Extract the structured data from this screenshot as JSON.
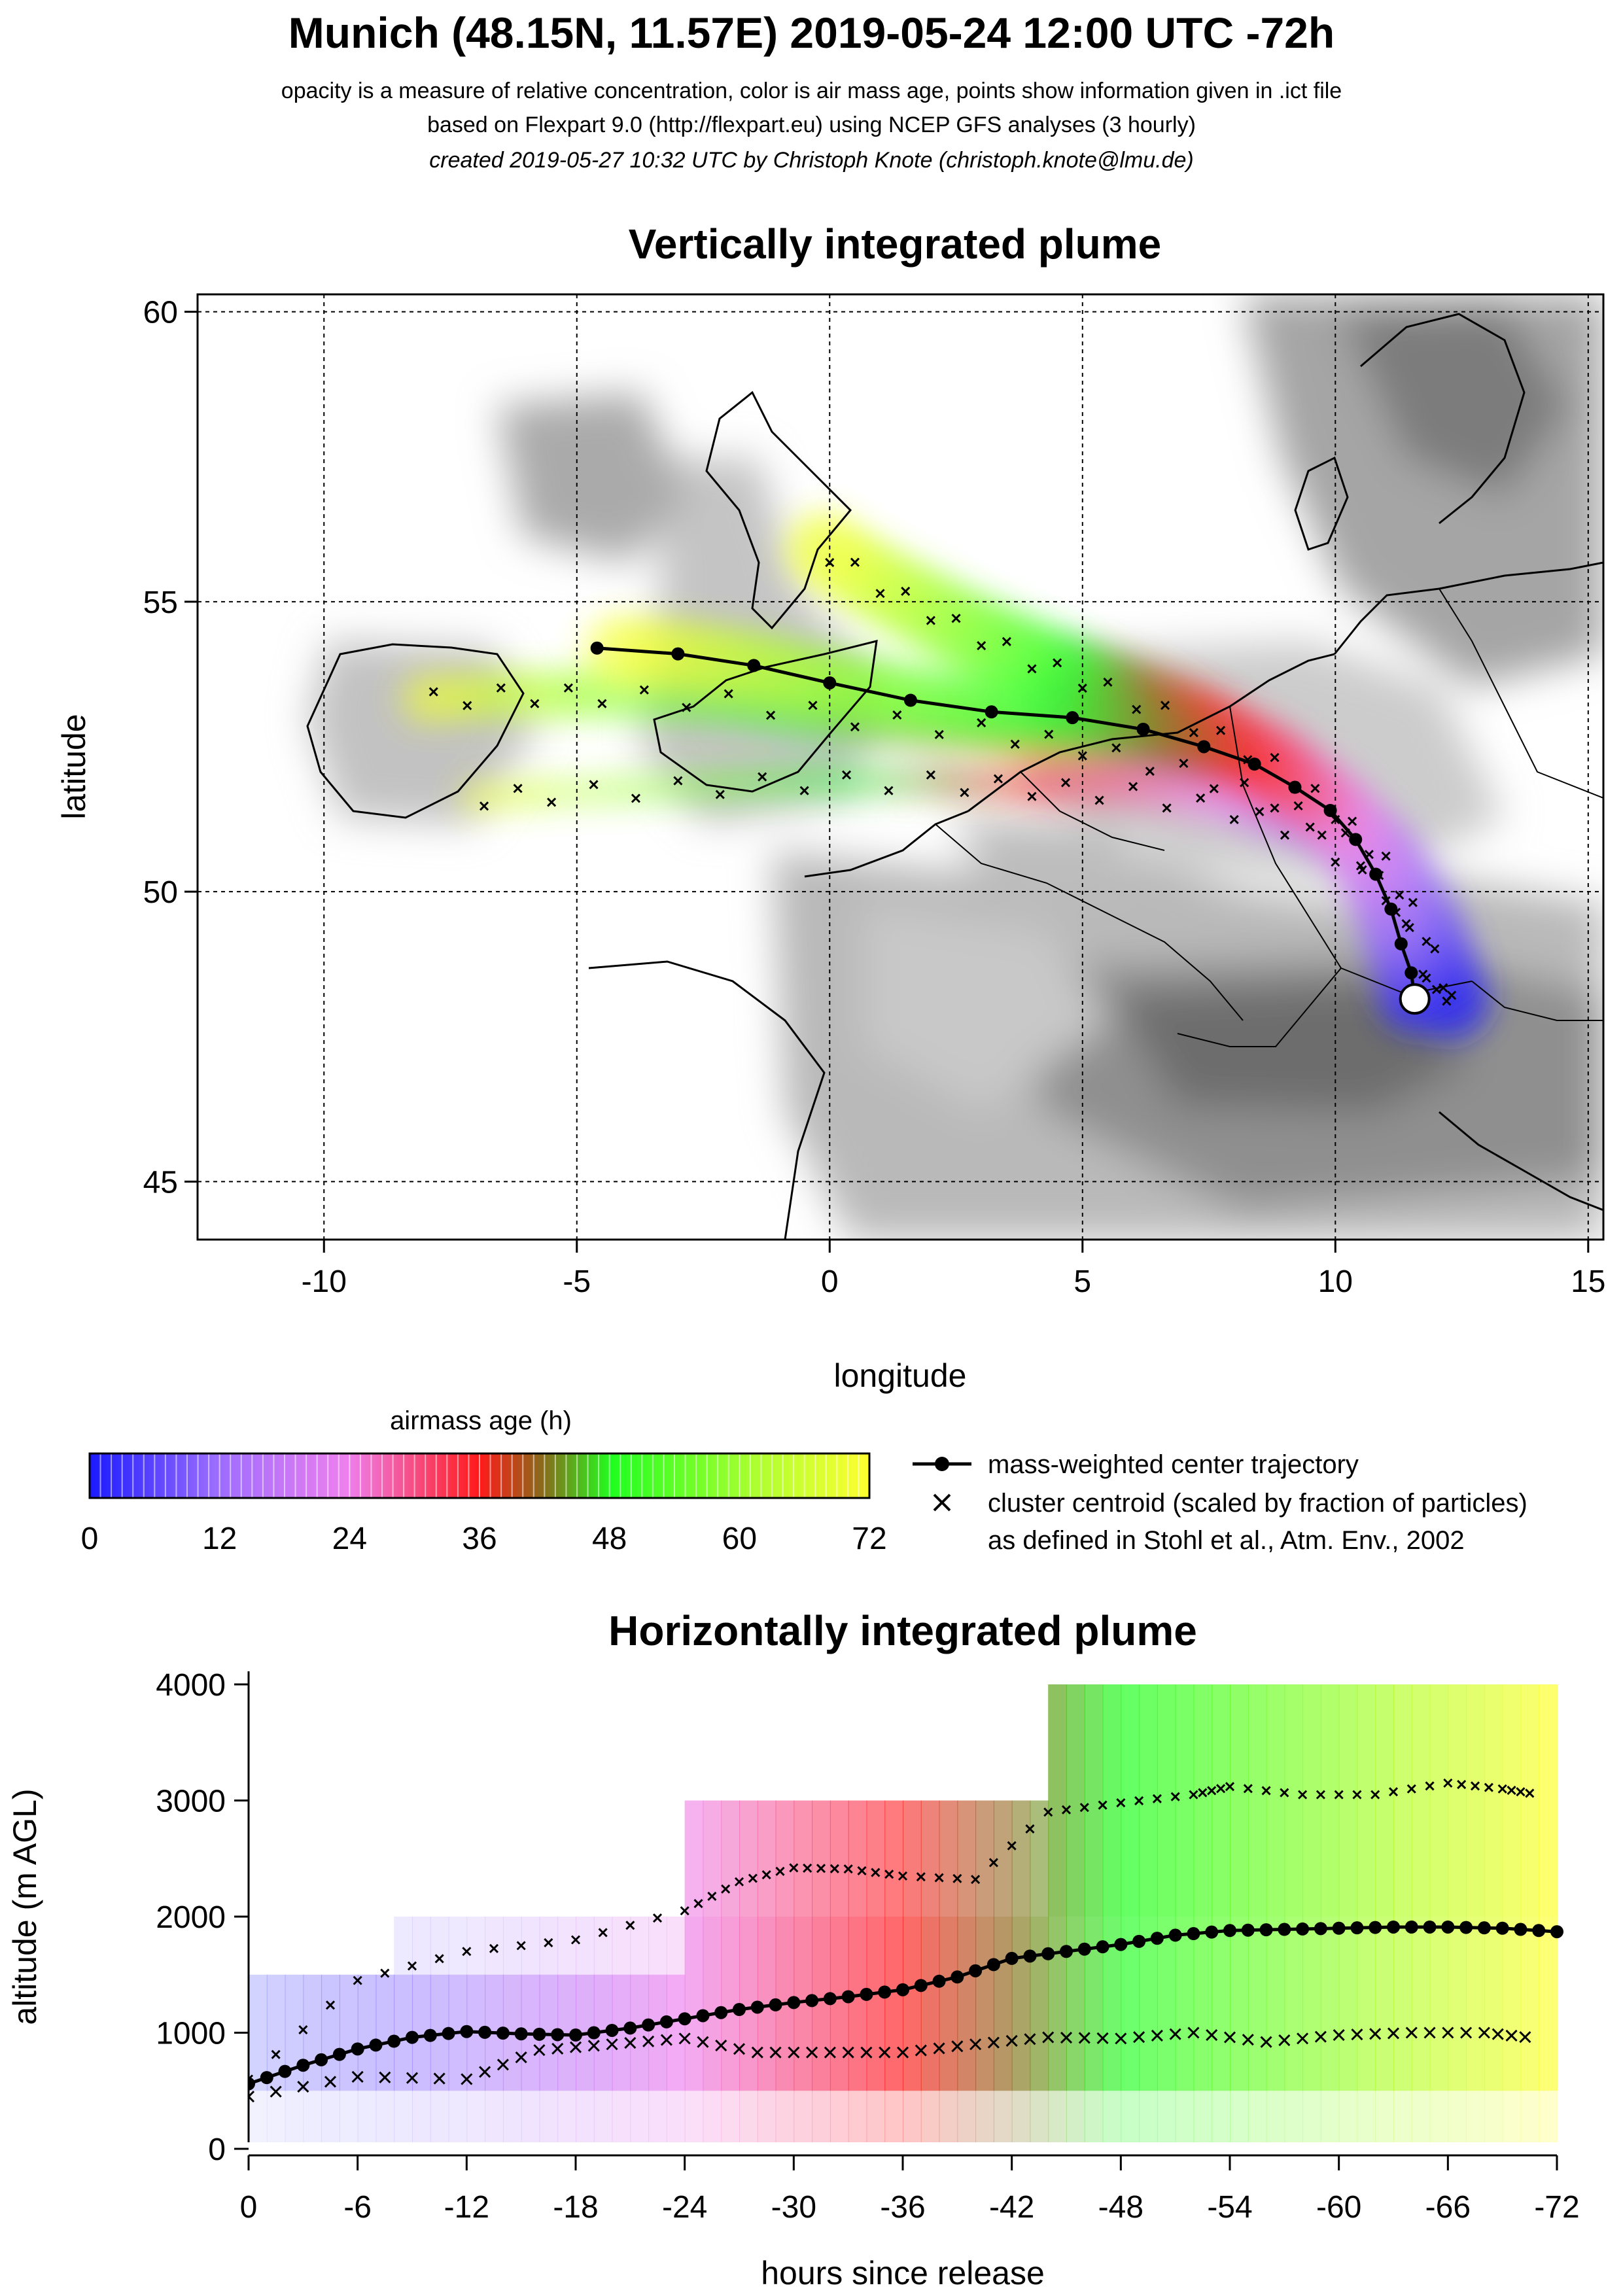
{
  "header": {
    "title": "Munich (48.15N, 11.57E) 2019-05-24 12:00 UTC -72h",
    "subtitle_1": "opacity is a measure of relative concentration, color is air mass age, points show information given in .ict file",
    "subtitle_2": "based on Flexpart 9.0 (http://flexpart.eu) using NCEP GFS analyses (3 hourly)",
    "subtitle_3": "created 2019-05-27 10:32 UTC by Christoph Knote (christoph.knote@lmu.de)"
  },
  "map_panel": {
    "title": "Vertically integrated plume",
    "xlabel": "longitude",
    "ylabel": "latitude"
  },
  "colorbar": {
    "title": "airmass age (h)",
    "ticks": [
      "0",
      "12",
      "24",
      "36",
      "48",
      "60",
      "72"
    ],
    "colors": {
      "blue": "#1a1aff",
      "magenta": "#ee80ee",
      "red": "#ff1a1a",
      "olive": "#7a7a1a",
      "green": "#20ff20",
      "yellow": "#ffff30"
    }
  },
  "legend": {
    "center_label": "mass-weighted center trajectory",
    "cluster_label": "cluster centroid (scaled by fraction of particles)",
    "cluster_label_2": "as defined in Stohl et al., Atm. Env., 2002"
  },
  "profile_panel": {
    "title": "Horizontally integrated plume",
    "xlabel": "hours since release",
    "ylabel": "altitude (m AGL)"
  },
  "chart_data": [
    {
      "type": "scatter",
      "title": "Vertically integrated plume",
      "xlabel": "longitude",
      "ylabel": "latitude",
      "xlim": [
        -12.5,
        15.3
      ],
      "ylim": [
        44.0,
        60.3
      ],
      "x_ticks": [
        "-10",
        "-5",
        "0",
        "5",
        "10",
        "15"
      ],
      "y_ticks": [
        "45",
        "50",
        "55",
        "60"
      ],
      "x_tick_values": [
        -10,
        -5,
        0,
        5,
        10,
        15
      ],
      "y_tick_values": [
        45,
        50,
        55,
        60
      ],
      "grid": true,
      "release_point": {
        "lon": 11.57,
        "lat": 48.15
      },
      "center_trajectory": {
        "lon": [
          11.57,
          11.5,
          11.3,
          11.1,
          10.8,
          10.4,
          9.9,
          9.2,
          8.4,
          7.4,
          6.2,
          4.8,
          3.2,
          1.6,
          0.0,
          -1.5,
          -3.0,
          -4.6
        ],
        "lat": [
          48.15,
          48.6,
          49.1,
          49.7,
          50.3,
          50.9,
          51.4,
          51.8,
          52.2,
          52.5,
          52.8,
          53.0,
          53.1,
          53.3,
          53.6,
          53.9,
          54.1,
          54.2
        ]
      },
      "plume_branches": [
        {
          "lon": [
            12.3,
            11.8,
            11.0,
            10.0,
            8.8,
            7.2,
            5.5,
            4.0,
            2.5,
            1.0,
            -0.5
          ],
          "lat": [
            48.1,
            49.3,
            50.5,
            51.4,
            52.2,
            52.9,
            53.5,
            54.0,
            54.6,
            55.3,
            56.1
          ],
          "age_end": 72
        },
        {
          "lon": [
            12.0,
            11.2,
            10.2,
            8.8,
            7.0,
            5.0,
            3.0,
            0.5,
            -2.0,
            -4.5,
            -6.5,
            -8.5
          ],
          "lat": [
            48.2,
            49.8,
            50.9,
            51.6,
            52.1,
            52.5,
            52.8,
            53.0,
            53.3,
            53.4,
            53.4,
            53.3
          ],
          "age_end": 72
        },
        {
          "lon": [
            12.2,
            11.0,
            9.5,
            8.0,
            6.0,
            4.0,
            2.0,
            -0.5,
            -3.0,
            -5.5,
            -7.5
          ],
          "lat": [
            48.0,
            50.0,
            51.0,
            51.4,
            51.7,
            51.8,
            51.9,
            51.9,
            51.8,
            51.7,
            51.6
          ],
          "age_end": 72
        }
      ]
    },
    {
      "type": "scatter",
      "title": "Horizontally integrated plume",
      "xlabel": "hours since release",
      "ylabel": "altitude (m AGL)",
      "xlim": [
        0,
        -72
      ],
      "ylim": [
        0,
        4000
      ],
      "x_ticks": [
        "0",
        "-6",
        "-12",
        "-18",
        "-24",
        "-30",
        "-36",
        "-42",
        "-48",
        "-54",
        "-60",
        "-66",
        "-72"
      ],
      "y_ticks": [
        "0",
        "1000",
        "2000",
        "3000",
        "4000"
      ],
      "center_trajectory": {
        "hours": [
          0,
          -3,
          -6,
          -9,
          -12,
          -15,
          -18,
          -21,
          -24,
          -27,
          -30,
          -33,
          -36,
          -39,
          -42,
          -45,
          -48,
          -51,
          -54,
          -57,
          -60,
          -63,
          -66,
          -69,
          -72
        ],
        "altitude": [
          560,
          720,
          860,
          960,
          1010,
          990,
          980,
          1040,
          1120,
          1200,
          1260,
          1310,
          1370,
          1480,
          1640,
          1700,
          1760,
          1840,
          1880,
          1890,
          1900,
          1910,
          1910,
          1900,
          1870
        ]
      },
      "cluster_upper": {
        "hours": [
          0,
          -6,
          -12,
          -18,
          -24,
          -27,
          -30,
          -33,
          -36,
          -40,
          -44,
          -48,
          -52,
          -54,
          -58,
          -62,
          -66,
          -69,
          -71
        ],
        "altitude": [
          600,
          1450,
          1700,
          1800,
          2050,
          2300,
          2420,
          2410,
          2350,
          2320,
          2900,
          2980,
          3050,
          3120,
          3050,
          3050,
          3150,
          3100,
          3050
        ]
      },
      "cluster_lower": {
        "hours": [
          0,
          -6,
          -12,
          -16,
          -20,
          -24,
          -28,
          -32,
          -36,
          -40,
          -44,
          -48,
          -52,
          -56,
          -60,
          -64,
          -68,
          -71
        ],
        "altitude": [
          450,
          620,
          600,
          850,
          900,
          950,
          830,
          830,
          830,
          900,
          960,
          950,
          1000,
          920,
          980,
          1000,
          1000,
          950
        ]
      }
    }
  ]
}
